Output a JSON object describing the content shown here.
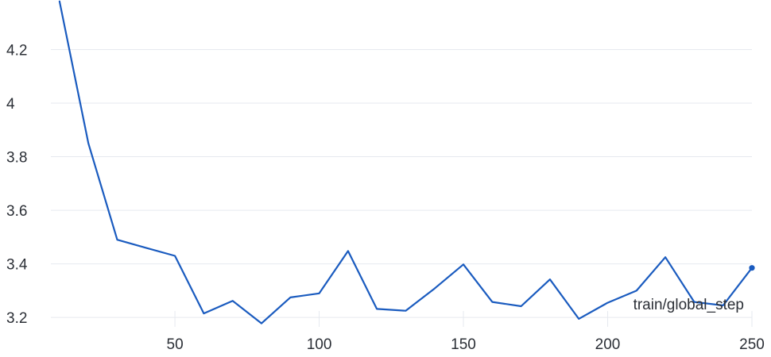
{
  "chart_data": {
    "type": "line",
    "xlabel": "train/global_step",
    "ylabel": "",
    "xlim": [
      7,
      250
    ],
    "ylim": [
      3.165,
      4.385
    ],
    "x_ticks": [
      50,
      100,
      150,
      200,
      250
    ],
    "y_ticks": [
      3.2,
      3.4,
      3.6,
      3.8,
      4,
      4.2
    ],
    "x_tick_labels": [
      "50",
      "100",
      "150",
      "200",
      "250"
    ],
    "y_tick_labels": [
      "3.2",
      "3.4",
      "3.6",
      "3.8",
      "4",
      "4.2"
    ],
    "grid": true,
    "series": [
      {
        "color": "#1a5bbf",
        "x": [
          10,
          20,
          30,
          40,
          50,
          60,
          70,
          80,
          90,
          100,
          110,
          120,
          130,
          140,
          150,
          160,
          170,
          180,
          190,
          200,
          210,
          220,
          230,
          240,
          250
        ],
        "y": [
          4.38,
          3.85,
          3.49,
          3.46,
          3.43,
          3.215,
          3.262,
          3.178,
          3.275,
          3.29,
          3.448,
          3.232,
          3.225,
          3.308,
          3.398,
          3.258,
          3.242,
          3.342,
          3.195,
          3.255,
          3.3,
          3.425,
          3.258,
          3.245,
          3.385
        ]
      }
    ]
  }
}
